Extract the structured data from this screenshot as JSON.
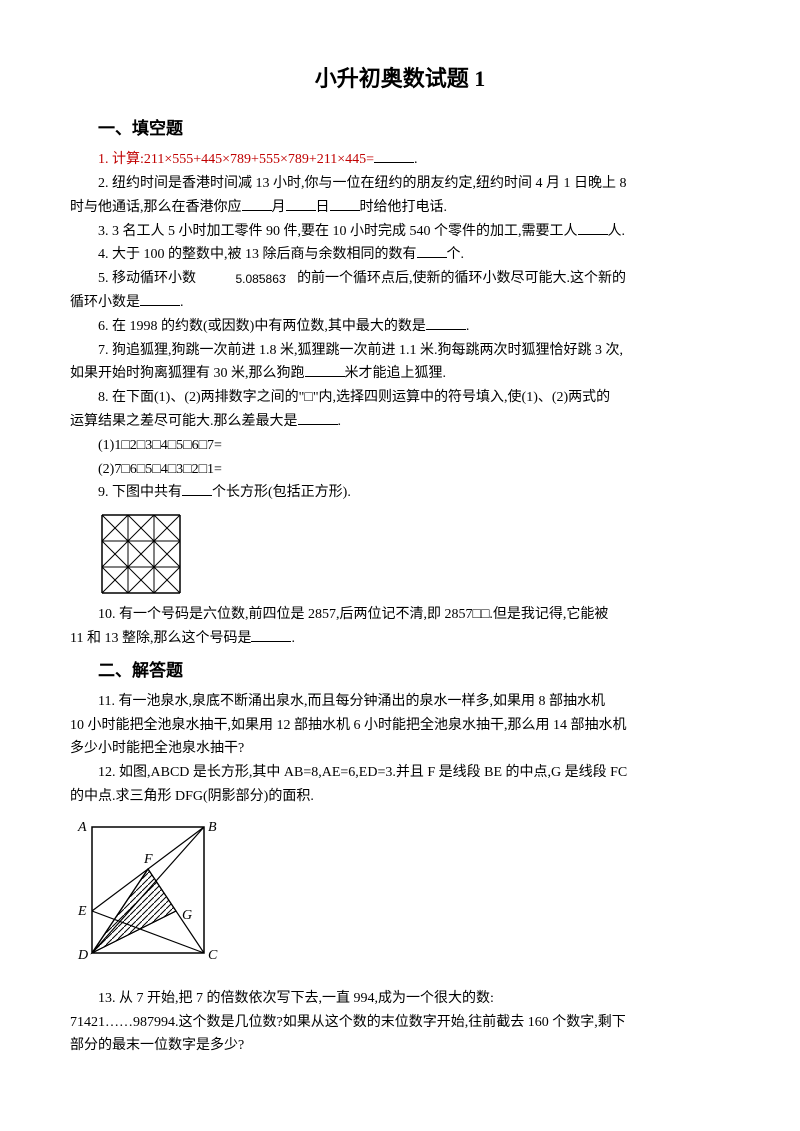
{
  "title": "小升初奥数试题 1",
  "section1": "一、填空题",
  "q1": "1. 计算:211×555+445×789+555×789+211×445=",
  "q1_end": ".",
  "q2a": "2. 纽约时间是香港时间减 13 小时,你与一位在纽约的朋友约定,纽约时间 4 月 1 日晚上 8",
  "q2b": "时与他通话,那么在香港你应",
  "q2b2": "月",
  "q2b3": "日",
  "q2b4": "时给他打电话.",
  "q3": "3. 3 名工人 5 小时加工零件 90 件,要在 10 小时完成 540 个零件的加工,需要工人",
  "q3_end": "人.",
  "q4": "4. 大于 100 的整数中,被 13 除后商与余数相同的数有",
  "q4_end": "个.",
  "q5a": "5. 移动循环小数",
  "q5_decimal": "5.085863",
  "q5b": "的前一个循环点后,使新的循环小数尽可能大.这个新的",
  "q5c": "循环小数是",
  "q5c_end": ".",
  "q6": "6. 在 1998 的约数(或因数)中有两位数,其中最大的数是",
  "q6_end": ".",
  "q7a": "7. 狗追狐狸,狗跳一次前进 1.8 米,狐狸跳一次前进 1.1 米.狗每跳两次时狐狸恰好跳 3 次,",
  "q7b": "如果开始时狗离狐狸有 30 米,那么狗跑",
  "q7b_end": "米才能追上狐狸.",
  "q8a": "8. 在下面(1)、(2)两排数字之间的\"□\"内,选择四则运算中的符号填入,使(1)、(2)两式的",
  "q8b": "运算结果之差尽可能大.那么差最大是",
  "q8b_end": ".",
  "q8c": "(1)1□2□3□4□5□6□7=",
  "q8d": "(2)7□6□5□4□3□2□1=",
  "q9": "9. 下图中共有",
  "q9_end": "个长方形(包括正方形).",
  "q10a": "10. 有一个号码是六位数,前四位是 2857,后两位记不清,即 2857□□.但是我记得,它能被",
  "q10b": "11 和 13 整除,那么这个号码是",
  "q10b_end": ".",
  "section2": "二、解答题",
  "q11a": "11. 有一池泉水,泉底不断涌出泉水,而且每分钟涌出的泉水一样多,如果用 8 部抽水机",
  "q11b": "10 小时能把全池泉水抽干,如果用 12 部抽水机 6 小时能把全池泉水抽干,那么用 14 部抽水机",
  "q11c": "多少小时能把全池泉水抽干?",
  "q12a": "12. 如图,ABCD 是长方形,其中 AB=8,AE=6,ED=3.并且 F 是线段 BE 的中点,G 是线段 FC",
  "q12b": "的中点.求三角形 DFG(阴影部分)的面积.",
  "q13a": "13. 从 7 开始,把 7 的倍数依次写下去,一直 994,成为一个很大的数:",
  "q13b": "71421……987994.这个数是几位数?如果从这个数的末位数字开始,往前截去 160 个数字,剩下",
  "q13c": "部分的最末一位数字是多少?",
  "grid": {
    "rows": 3,
    "cols": 3,
    "cell": 26,
    "stroke": "#000000"
  },
  "geo": {
    "labels": {
      "A": "A",
      "B": "B",
      "C": "C",
      "D": "D",
      "E": "E",
      "F": "F",
      "G": "G"
    },
    "stroke": "#000000"
  }
}
